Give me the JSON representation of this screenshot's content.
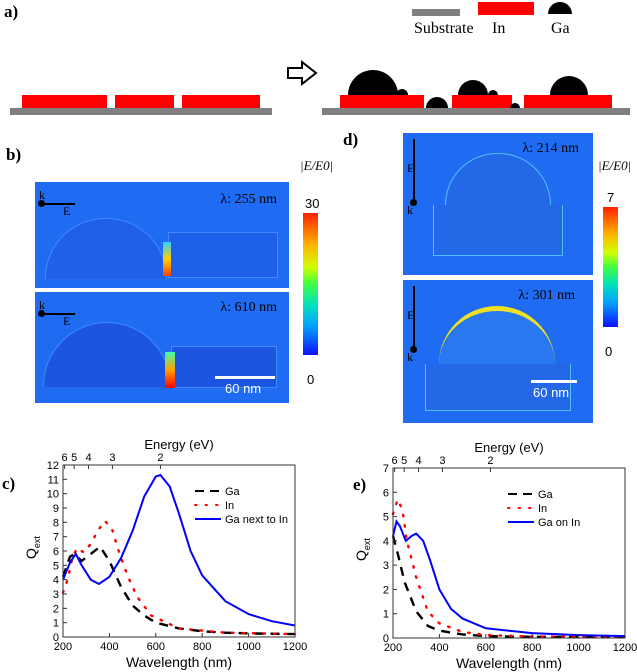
{
  "panel_a": {
    "label": "a)",
    "legend": {
      "substrate": "Substrate",
      "in": "In",
      "ga": "Ga"
    }
  },
  "panel_b": {
    "label": "b)",
    "top_lambda": "λ: 255 nm",
    "bottom_lambda": "λ: 610 nm",
    "k_label": "k",
    "e_label": "E",
    "colorbar_title": "|E/E0|",
    "colorbar_max": "30",
    "colorbar_min": "0",
    "scale_bar": "60 nm"
  },
  "panel_d": {
    "label": "d)",
    "top_lambda": "λ: 214 nm",
    "bottom_lambda": "λ: 301 nm",
    "k_label": "k",
    "e_label": "E",
    "colorbar_title": "|E/E0|",
    "colorbar_max": "7",
    "colorbar_min": "0",
    "scale_bar": "60 nm"
  },
  "chart_data": [
    {
      "panel_label": "c)",
      "type": "line",
      "title": "",
      "xlabel": "Wavelength (nm)",
      "ylabel": "Q",
      "ylabel_sub": "ext",
      "top_xlabel": "Energy (eV)",
      "top_ticks": [
        {
          "label": "6",
          "wavelength": 207
        },
        {
          "label": "5",
          "wavelength": 248
        },
        {
          "label": "4",
          "wavelength": 310
        },
        {
          "label": "3",
          "wavelength": 413
        },
        {
          "label": "2",
          "wavelength": 620
        }
      ],
      "xlim": [
        200,
        1200
      ],
      "ylim": [
        0,
        12
      ],
      "xticks": [
        200,
        400,
        600,
        800,
        1000,
        1200
      ],
      "yticks": [
        0,
        1,
        2,
        3,
        4,
        5,
        6,
        7,
        8,
        9,
        10,
        11,
        12
      ],
      "legend_position": "top-right",
      "series": [
        {
          "name": "Ga",
          "style": "dash",
          "color": "#000000",
          "points": [
            [
              200,
              4.2
            ],
            [
              230,
              5.6
            ],
            [
              250,
              5.8
            ],
            [
              280,
              5.3
            ],
            [
              320,
              5.8
            ],
            [
              360,
              6.3
            ],
            [
              400,
              5.3
            ],
            [
              450,
              3.5
            ],
            [
              500,
              2.2
            ],
            [
              550,
              1.5
            ],
            [
              600,
              1.0
            ],
            [
              700,
              0.6
            ],
            [
              800,
              0.4
            ],
            [
              900,
              0.3
            ],
            [
              1000,
              0.25
            ],
            [
              1200,
              0.2
            ]
          ]
        },
        {
          "name": "In",
          "style": "dot",
          "color": "#ff0000",
          "points": [
            [
              200,
              3.1
            ],
            [
              220,
              4.0
            ],
            [
              240,
              5.5
            ],
            [
              260,
              6.2
            ],
            [
              290,
              5.9
            ],
            [
              320,
              6.5
            ],
            [
              350,
              7.4
            ],
            [
              380,
              8.1
            ],
            [
              410,
              7.6
            ],
            [
              440,
              6.0
            ],
            [
              480,
              4.2
            ],
            [
              520,
              2.8
            ],
            [
              580,
              1.5
            ],
            [
              700,
              0.6
            ],
            [
              900,
              0.3
            ],
            [
              1200,
              0.2
            ]
          ]
        },
        {
          "name": "Ga next to In",
          "style": "solid",
          "color": "#0000ff",
          "points": [
            [
              200,
              4.0
            ],
            [
              230,
              5.2
            ],
            [
              255,
              5.8
            ],
            [
              280,
              5.0
            ],
            [
              320,
              4.0
            ],
            [
              355,
              3.7
            ],
            [
              400,
              4.2
            ],
            [
              450,
              5.5
            ],
            [
              500,
              7.4
            ],
            [
              550,
              9.8
            ],
            [
              600,
              11.2
            ],
            [
              620,
              11.3
            ],
            [
              660,
              10.5
            ],
            [
              700,
              8.6
            ],
            [
              750,
              6.0
            ],
            [
              800,
              4.3
            ],
            [
              900,
              2.5
            ],
            [
              1000,
              1.6
            ],
            [
              1100,
              1.1
            ],
            [
              1200,
              0.8
            ]
          ]
        }
      ]
    },
    {
      "panel_label": "e)",
      "type": "line",
      "title": "",
      "xlabel": "Wavelength (nm)",
      "ylabel": "Q",
      "ylabel_sub": "ext",
      "top_xlabel": "Energy (eV)",
      "top_ticks": [
        {
          "label": "6",
          "wavelength": 207
        },
        {
          "label": "5",
          "wavelength": 248
        },
        {
          "label": "4",
          "wavelength": 310
        },
        {
          "label": "3",
          "wavelength": 413
        },
        {
          "label": "2",
          "wavelength": 620
        }
      ],
      "xlim": [
        200,
        1200
      ],
      "ylim": [
        0,
        7
      ],
      "xticks": [
        200,
        400,
        600,
        800,
        1000,
        1200
      ],
      "yticks": [
        0,
        1,
        2,
        3,
        4,
        5,
        6,
        7
      ],
      "legend_position": "top-right",
      "series": [
        {
          "name": "Ga",
          "style": "dash",
          "color": "#000000",
          "points": [
            [
              200,
              4.2
            ],
            [
              220,
              3.5
            ],
            [
              250,
              2.3
            ],
            [
              300,
              1.1
            ],
            [
              350,
              0.5
            ],
            [
              400,
              0.3
            ],
            [
              500,
              0.15
            ],
            [
              600,
              0.08
            ],
            [
              800,
              0.05
            ],
            [
              1200,
              0.03
            ]
          ]
        },
        {
          "name": "In",
          "style": "dot",
          "color": "#ff0000",
          "points": [
            [
              200,
              5.1
            ],
            [
              220,
              5.7
            ],
            [
              240,
              5.3
            ],
            [
              260,
              4.0
            ],
            [
              300,
              2.5
            ],
            [
              350,
              1.1
            ],
            [
              400,
              0.6
            ],
            [
              500,
              0.25
            ],
            [
              600,
              0.12
            ],
            [
              800,
              0.06
            ],
            [
              1200,
              0.04
            ]
          ]
        },
        {
          "name": "Ga on In",
          "style": "solid",
          "color": "#0000ff",
          "points": [
            [
              200,
              4.2
            ],
            [
              215,
              4.8
            ],
            [
              230,
              4.6
            ],
            [
              255,
              4.0
            ],
            [
              280,
              4.2
            ],
            [
              300,
              4.3
            ],
            [
              330,
              4.0
            ],
            [
              360,
              3.2
            ],
            [
              400,
              2.0
            ],
            [
              450,
              1.2
            ],
            [
              500,
              0.8
            ],
            [
              600,
              0.4
            ],
            [
              800,
              0.2
            ],
            [
              1000,
              0.12
            ],
            [
              1200,
              0.08
            ]
          ]
        }
      ]
    }
  ]
}
